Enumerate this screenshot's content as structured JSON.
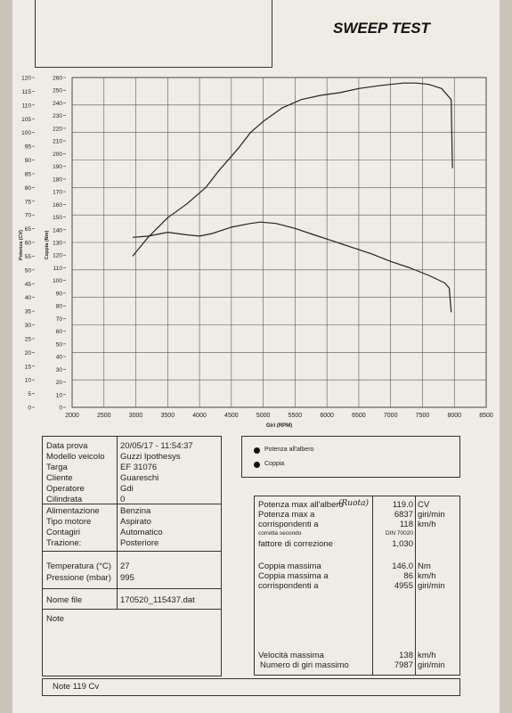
{
  "title": "SWEEP TEST",
  "chart_data": {
    "type": "line",
    "xlabel": "Giri (RPM)",
    "ylabel_left": "Potenza (CV)",
    "ylabel_right": "Coppia (Nm)",
    "x_ticks": [
      "2000",
      "2500",
      "3000",
      "3500",
      "4000",
      "4500",
      "5000",
      "5500",
      "6000",
      "6500",
      "7000",
      "7500",
      "8000",
      "8500"
    ],
    "y_left_ticks": [
      "0",
      "5",
      "10",
      "15",
      "20",
      "25",
      "30",
      "35",
      "40",
      "45",
      "50",
      "55",
      "60",
      "65",
      "70",
      "75",
      "80",
      "85",
      "90",
      "95",
      "100",
      "105",
      "110",
      "115",
      "120"
    ],
    "y_right_ticks": [
      "0",
      "10",
      "20",
      "30",
      "40",
      "50",
      "60",
      "70",
      "80",
      "90",
      "100",
      "110",
      "120",
      "130",
      "140",
      "150",
      "160",
      "170",
      "180",
      "190",
      "200",
      "210",
      "220",
      "230",
      "240",
      "250",
      "260"
    ],
    "xlim": [
      2000,
      8500
    ],
    "ylim_left": [
      0,
      120
    ],
    "ylim_right": [
      0,
      260
    ],
    "series": [
      {
        "name": "Potenza all'albero",
        "axis": "left",
        "color": "#222222",
        "x": [
          2950,
          3200,
          3500,
          3800,
          4100,
          4300,
          4600,
          4800,
          5000,
          5300,
          5600,
          5900,
          6200,
          6500,
          6800,
          7000,
          7200,
          7400,
          7600,
          7800,
          7950,
          7970
        ],
        "y": [
          55,
          62,
          69,
          74,
          80,
          86,
          94,
          100,
          104,
          109,
          112,
          113.5,
          114.5,
          116,
          117,
          117.5,
          118,
          118,
          117.5,
          116,
          112,
          87
        ]
      },
      {
        "name": "Coppia",
        "axis": "right",
        "color": "#222222",
        "x": [
          2950,
          3200,
          3500,
          3800,
          4000,
          4200,
          4500,
          4800,
          4955,
          5200,
          5500,
          5800,
          6100,
          6400,
          6700,
          7000,
          7300,
          7600,
          7850,
          7920,
          7950
        ],
        "y": [
          134,
          135,
          138,
          136,
          135,
          137,
          142,
          145,
          146,
          145,
          141,
          136,
          131,
          126,
          121,
          115,
          110,
          104,
          98,
          94,
          75
        ]
      }
    ]
  },
  "legend": {
    "items": [
      {
        "label": "Potenza all'albero"
      },
      {
        "label": "Coppia"
      }
    ]
  },
  "info": {
    "data_prova_label": "Data prova",
    "data_prova": "20/05/17 - 11:54:37",
    "modello_label": "Modello veicolo",
    "modello": "Guzzi Ipothesys",
    "targa_label": "Targa",
    "targa": "EF 31076",
    "cliente_label": "Cliente",
    "cliente": "Guareschi",
    "operatore_label": "Operatore",
    "operatore": "Gdi",
    "cilindrata_label": "Cilindrata",
    "cilindrata": "0",
    "alimentazione_label": "Alimentazione",
    "alimentazione": "Benzina",
    "tipo_motore_label": "Tipo motore",
    "tipo_motore": "Aspirato",
    "contagiri_label": "Contagiri",
    "contagiri": "Automatico",
    "trazione_label": "Trazione:",
    "trazione": "Posteriore",
    "temperatura_label": "Temperatura (°C)",
    "temperatura": "27",
    "pressione_label": "Pressione (mbar)",
    "pressione": "995",
    "nome_file_label": "Nome file",
    "nome_file": "170520_115437.dat",
    "note_label": "Note"
  },
  "results": {
    "pot_max_label": "Potenza max all'albero",
    "pot_max_handwritten": "(Ruota)",
    "pot_max": "119.0",
    "pot_max_unit": "CV",
    "pot_max_a_label": "Potenza max a",
    "pot_max_a": "6837",
    "pot_max_a_unit": "giri/min",
    "corrispondenti_label": "corrispondenti a",
    "corrispondenti": "118",
    "corrispondenti_unit": "km/h",
    "corretta_label": "corretta secondo",
    "corretta": "DIN 70020",
    "fattore_label": "fattore di correzione",
    "fattore": "1,030",
    "coppia_max_label": "Coppia massima",
    "coppia_max": "146.0",
    "coppia_max_unit": "Nm",
    "coppia_max_a_label": "Coppia massima a",
    "coppia_max_a": "86",
    "coppia_max_a_unit": "km/h",
    "corrispondenti2_label": "corrispondenti a",
    "corrispondenti2": "4955",
    "corrispondenti2_unit": "giri/min",
    "velocita_label": "Velocità massima",
    "velocita": "138",
    "velocita_unit": "km/h",
    "giri_max_label": "Numero di giri massimo",
    "giri_max": "7987",
    "giri_max_unit": "giri/min"
  },
  "footer_note": "Note  119 Cv"
}
